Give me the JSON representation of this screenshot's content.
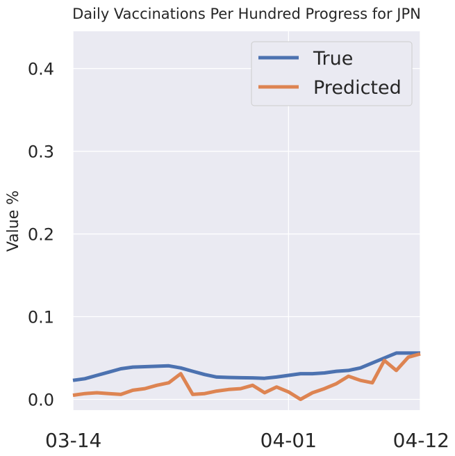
{
  "chart_data": {
    "type": "line",
    "title": "Daily Vaccinations Per Hundred Progress for JPN",
    "xlabel": "",
    "ylabel": "Value %",
    "x_tick_labels": [
      "03-14",
      "04-01",
      "04-12"
    ],
    "y_tick_labels": [
      "0.0",
      "0.1",
      "0.2",
      "0.3",
      "0.4"
    ],
    "y_ticks": [
      0.0,
      0.1,
      0.2,
      0.3,
      0.4
    ],
    "ylim": [
      -0.013,
      0.445
    ],
    "x": [
      "03-14",
      "03-15",
      "03-16",
      "03-17",
      "03-18",
      "03-19",
      "03-20",
      "03-21",
      "03-22",
      "03-23",
      "03-24",
      "03-25",
      "03-26",
      "03-27",
      "03-28",
      "03-29",
      "03-30",
      "03-31",
      "04-01",
      "04-02",
      "04-03",
      "04-04",
      "04-05",
      "04-06",
      "04-07",
      "04-08",
      "04-09",
      "04-10",
      "04-11",
      "04-12"
    ],
    "series": [
      {
        "name": "True",
        "color": "#4c72b0",
        "values": [
          0.023,
          0.025,
          0.029,
          0.033,
          0.037,
          0.039,
          0.0395,
          0.04,
          0.0405,
          0.038,
          0.034,
          0.03,
          0.027,
          0.0265,
          0.0262,
          0.026,
          0.0255,
          0.027,
          0.029,
          0.031,
          0.031,
          0.032,
          0.034,
          0.035,
          0.038,
          0.044,
          0.05,
          0.056,
          0.056,
          0.056
        ]
      },
      {
        "name": "Predicted",
        "color": "#dd8452",
        "values": [
          0.005,
          0.007,
          0.008,
          0.007,
          0.006,
          0.011,
          0.013,
          0.017,
          0.02,
          0.031,
          0.006,
          0.007,
          0.01,
          0.012,
          0.013,
          0.017,
          0.008,
          0.015,
          0.009,
          0.0,
          0.008,
          0.013,
          0.019,
          0.028,
          0.023,
          0.02,
          0.047,
          0.035,
          0.051,
          0.055
        ]
      }
    ],
    "grid": true,
    "legend_position": "top-right",
    "background_color": "#eaeaf2"
  }
}
